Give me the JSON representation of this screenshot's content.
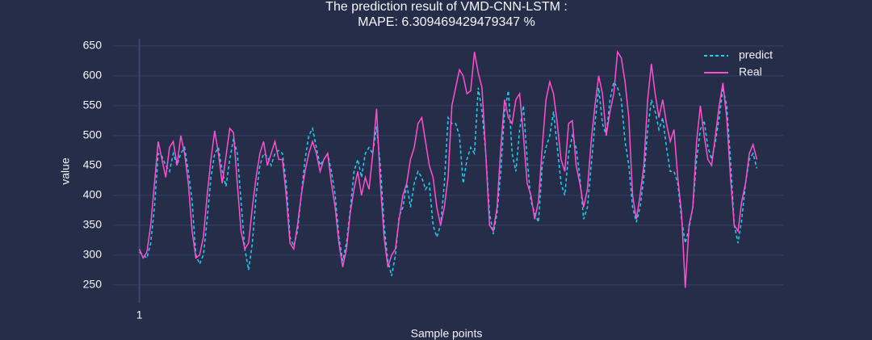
{
  "chart_data": {
    "type": "line",
    "title": "The prediction result of VMD-CNN-LSTM :",
    "subtitle": "MAPE: 6.309469429479347 %",
    "x_label": "Sample points",
    "y_label": "value",
    "x": [
      1,
      2,
      3,
      4,
      5,
      6,
      7,
      8,
      9,
      10,
      11,
      12,
      13,
      14,
      15,
      16,
      17,
      18,
      19,
      20,
      21,
      22,
      23,
      24,
      25,
      26,
      27,
      28,
      29,
      30,
      31,
      32,
      33,
      34,
      35,
      36,
      37,
      38,
      39,
      40,
      41,
      42,
      43,
      44,
      45,
      46,
      47,
      48,
      49,
      50,
      51,
      52,
      53,
      54,
      55,
      56,
      57,
      58,
      59,
      60,
      61,
      62,
      63,
      64,
      65,
      66,
      67,
      68,
      69,
      70,
      71,
      72,
      73,
      74,
      75,
      76,
      77,
      78,
      79,
      80,
      81,
      82,
      83,
      84,
      85,
      86,
      87,
      88,
      89,
      90,
      91,
      92,
      93,
      94,
      95,
      96,
      97,
      98,
      99,
      100,
      101,
      102,
      103,
      104,
      105,
      106,
      107,
      108,
      109,
      110,
      111,
      112,
      113,
      114,
      115,
      116,
      117,
      118,
      119,
      120,
      121,
      122,
      123,
      124,
      125,
      126,
      127,
      128,
      129,
      130,
      131,
      132,
      133,
      134,
      135,
      136,
      137,
      138,
      139,
      140,
      141,
      142,
      143,
      144,
      145,
      146,
      147,
      148,
      149,
      150,
      151,
      152,
      153,
      154,
      155,
      156,
      157,
      158,
      159,
      160,
      161,
      162,
      163,
      164,
      165
    ],
    "series": [
      {
        "name": "predict",
        "color": "#19d3f3",
        "dash": true,
        "values": [
          305,
          300,
          295,
          320,
          380,
          470,
          465,
          450,
          440,
          470,
          450,
          470,
          480,
          440,
          390,
          300,
          285,
          300,
          360,
          430,
          470,
          480,
          440,
          415,
          460,
          495,
          470,
          390,
          310,
          275,
          320,
          400,
          450,
          470,
          465,
          450,
          470,
          475,
          470,
          420,
          330,
          315,
          340,
          400,
          460,
          500,
          512,
          480,
          450,
          460,
          470,
          440,
          400,
          330,
          290,
          320,
          375,
          440,
          460,
          430,
          470,
          480,
          470,
          515,
          450,
          350,
          290,
          265,
          300,
          365,
          380,
          420,
          380,
          420,
          440,
          430,
          410,
          420,
          350,
          330,
          350,
          420,
          530,
          520,
          520,
          500,
          420,
          460,
          480,
          470,
          580,
          540,
          470,
          370,
          335,
          370,
          440,
          540,
          575,
          470,
          440,
          510,
          550,
          460,
          390,
          370,
          355,
          450,
          480,
          500,
          540,
          480,
          420,
          400,
          470,
          500,
          480,
          430,
          360,
          380,
          450,
          520,
          580,
          520,
          500,
          560,
          590,
          580,
          560,
          490,
          450,
          380,
          355,
          380,
          430,
          510,
          560,
          540,
          510,
          530,
          480,
          440,
          440,
          420,
          360,
          320,
          345,
          380,
          460,
          510,
          525,
          480,
          460,
          490,
          530,
          580,
          550,
          460,
          350,
          320,
          360,
          420,
          460,
          470,
          445
        ]
      },
      {
        "name": "Real",
        "color": "#ff4fcf",
        "dash": false,
        "values": [
          310,
          295,
          305,
          350,
          420,
          490,
          460,
          430,
          480,
          490,
          450,
          500,
          470,
          420,
          340,
          295,
          300,
          330,
          400,
          460,
          508,
          470,
          420,
          465,
          512,
          505,
          420,
          340,
          310,
          320,
          380,
          430,
          470,
          490,
          450,
          470,
          490,
          460,
          460,
          400,
          320,
          310,
          350,
          400,
          440,
          470,
          490,
          470,
          440,
          460,
          470,
          420,
          380,
          320,
          280,
          310,
          370,
          410,
          440,
          400,
          430,
          410,
          470,
          545,
          420,
          330,
          280,
          300,
          310,
          360,
          400,
          420,
          460,
          480,
          520,
          530,
          490,
          450,
          430,
          380,
          350,
          380,
          430,
          550,
          580,
          610,
          600,
          570,
          575,
          640,
          605,
          580,
          470,
          350,
          340,
          380,
          480,
          560,
          530,
          520,
          560,
          570,
          500,
          420,
          400,
          360,
          390,
          480,
          560,
          590,
          570,
          520,
          460,
          440,
          520,
          525,
          450,
          420,
          380,
          410,
          490,
          550,
          600,
          570,
          500,
          540,
          570,
          640,
          630,
          590,
          530,
          400,
          360,
          400,
          450,
          560,
          620,
          570,
          530,
          560,
          520,
          490,
          510,
          430,
          370,
          245,
          350,
          380,
          490,
          550,
          500,
          460,
          450,
          500,
          550,
          588,
          530,
          430,
          350,
          340,
          390,
          420,
          470,
          485,
          460
        ]
      }
    ],
    "xlim": [
      -6,
      172
    ],
    "xticks": [
      1
    ],
    "ylim": [
      220,
      662
    ],
    "yticks": [
      250,
      300,
      350,
      400,
      450,
      500,
      550,
      600,
      650
    ],
    "grid": true,
    "legend": "top-right"
  }
}
